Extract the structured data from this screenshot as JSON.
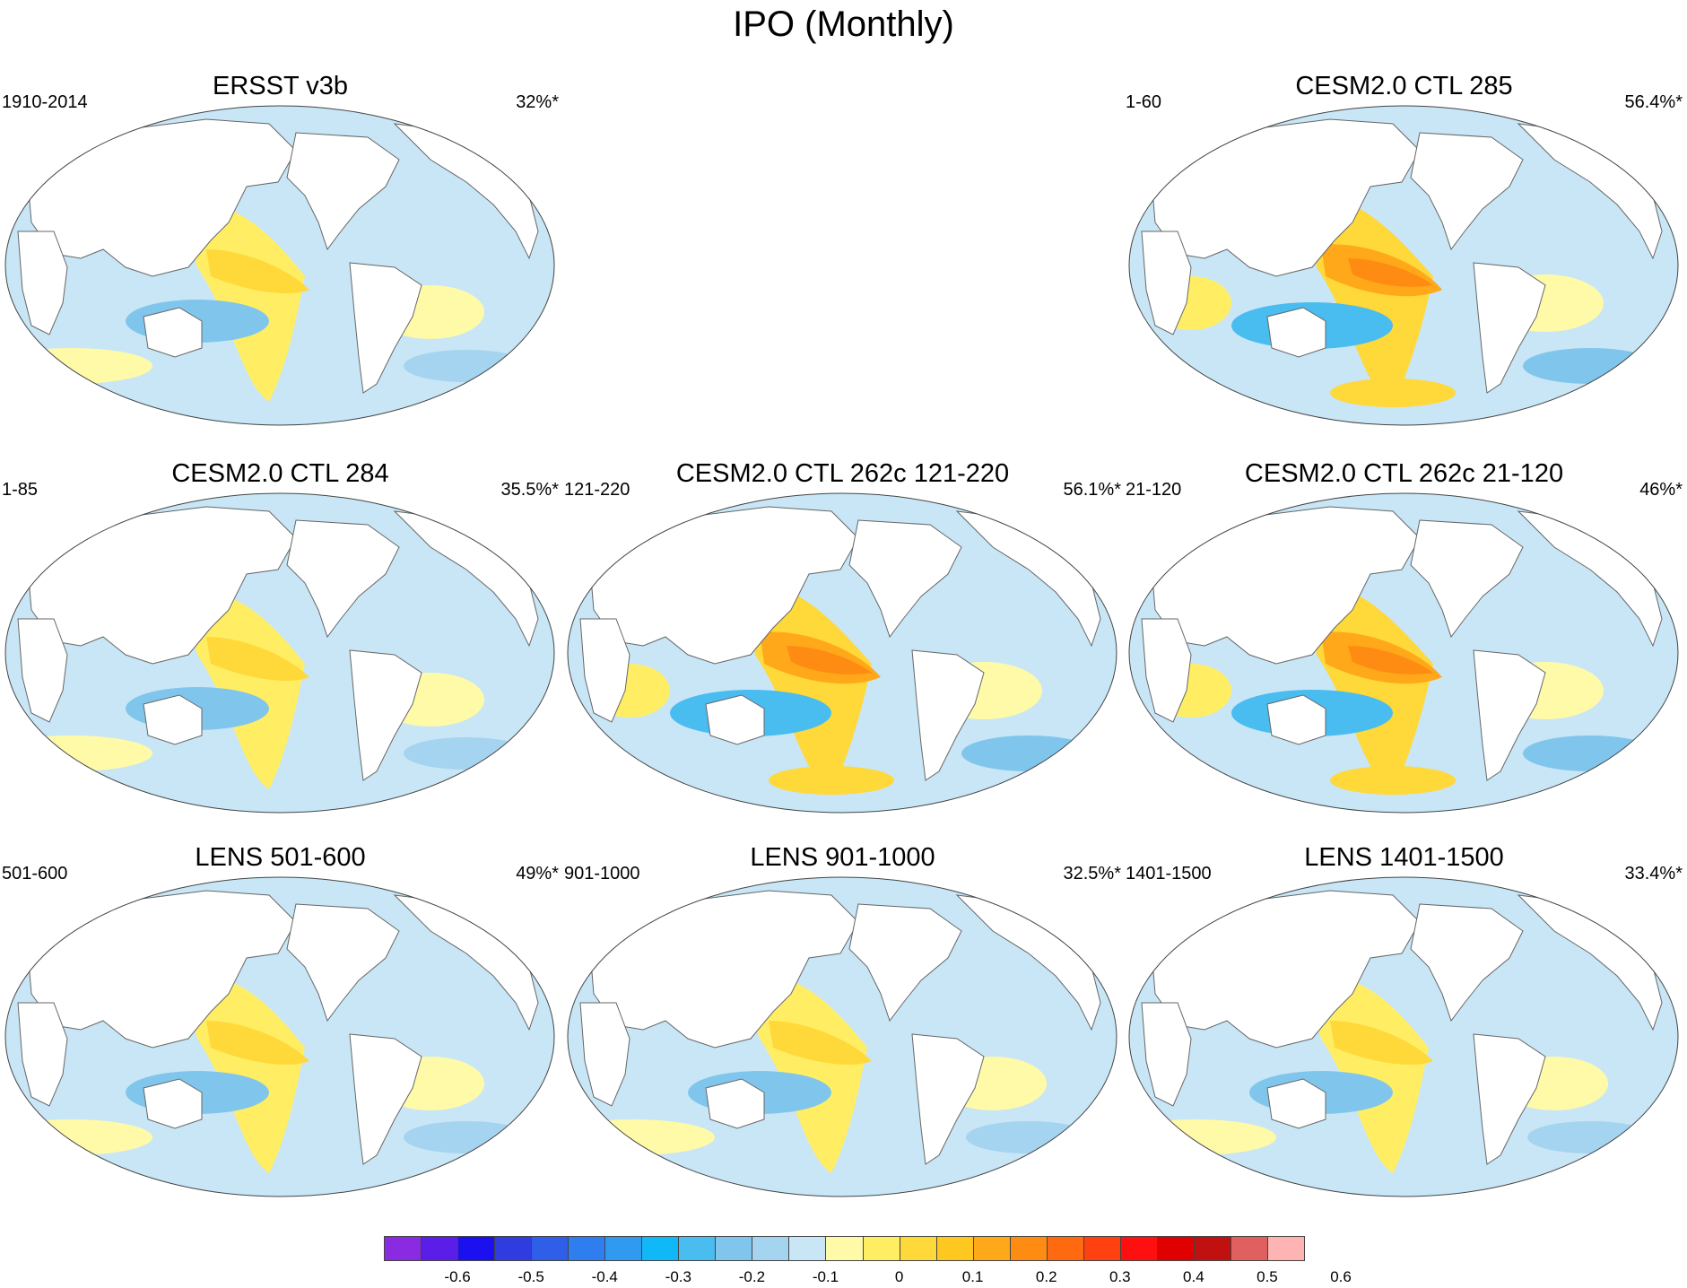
{
  "figure": {
    "title": "IPO (Monthly)"
  },
  "panels": [
    {
      "title": "ERSST v3b",
      "period": "1910-2014",
      "variance": "32%*"
    },
    {
      "title": "CESM2.0 CTL 285",
      "period": "1-60",
      "variance": "56.4%*"
    },
    {
      "title": "CESM2.0 CTL 284",
      "period": "1-85",
      "variance": "35.5%*"
    },
    {
      "title": "CESM2.0 CTL 262c 121-220",
      "period": "121-220",
      "variance": "56.1%*"
    },
    {
      "title": "CESM2.0 CTL 262c 21-120",
      "period": "21-120",
      "variance": "46%*"
    },
    {
      "title": "LENS 501-600",
      "period": "501-600",
      "variance": "49%*"
    },
    {
      "title": "LENS 901-1000",
      "period": "901-1000",
      "variance": "32.5%*"
    },
    {
      "title": "LENS 1401-1500",
      "period": "1401-1500",
      "variance": "33.4%*"
    }
  ],
  "colorbar": {
    "labels": [
      "-0.6",
      "-0.5",
      "-0.4",
      "-0.3",
      "-0.2",
      "-0.1",
      "0",
      "0.1",
      "0.2",
      "0.3",
      "0.4",
      "0.5",
      "0.6"
    ],
    "colors": [
      "#8a2be2",
      "#5a1ee8",
      "#1a10f0",
      "#2f3ce0",
      "#2f5ee8",
      "#2f7ef0",
      "#2f9af0",
      "#10b8f8",
      "#49bcf0",
      "#80c6ec",
      "#a4d4f0",
      "#c8e6f6",
      "#fffaa8",
      "#ffee64",
      "#ffd83a",
      "#ffc820",
      "#ffa81a",
      "#ff8c12",
      "#ff6a10",
      "#ff4010",
      "#ff1010",
      "#e00000",
      "#c01010",
      "#e06060",
      "#ffb4b4"
    ]
  },
  "colors": {
    "land": "#ffffff",
    "ocean_neutral": "#c8e6f6",
    "coastline": "#666666"
  }
}
